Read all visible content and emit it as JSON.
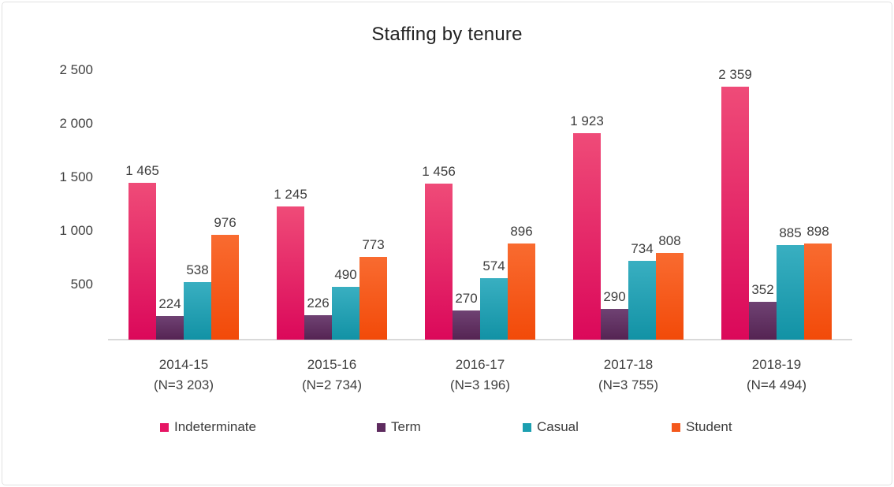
{
  "chart_data": {
    "type": "bar",
    "title": "Staffing by tenure",
    "categories": [
      "2014-15",
      "2015-16",
      "2016-17",
      "2017-18",
      "2018-19"
    ],
    "category_notes": [
      "(N=3 203)",
      "(N=2 734)",
      "(N=3 196)",
      "(N=3 755)",
      "(N=4 494)"
    ],
    "series": [
      {
        "name": "Indeterminate",
        "color": "#E61564",
        "color_top": "#EF4B78",
        "color_bottom": "#DB085A",
        "values": [
          1465,
          1245,
          1456,
          1923,
          2359
        ],
        "value_labels": [
          "1 465",
          "1 245",
          "1 456",
          "1 923",
          "2 359"
        ]
      },
      {
        "name": "Term",
        "color": "#5E2B5F",
        "color_top": "#6F4273",
        "color_bottom": "#552453",
        "values": [
          224,
          226,
          270,
          290,
          352
        ],
        "value_labels": [
          "224",
          "226",
          "270",
          "290",
          "352"
        ]
      },
      {
        "name": "Casual",
        "color": "#1C9FB0",
        "color_top": "#39AFC1",
        "color_bottom": "#1292A5",
        "values": [
          538,
          490,
          574,
          734,
          885
        ],
        "value_labels": [
          "538",
          "490",
          "574",
          "734",
          "885"
        ]
      },
      {
        "name": "Student",
        "color": "#F4581C",
        "color_top": "#F96B30",
        "color_bottom": "#F24A09",
        "values": [
          976,
          773,
          896,
          808,
          898
        ],
        "value_labels": [
          "976",
          "773",
          "896",
          "808",
          "898"
        ]
      }
    ],
    "y_axis": {
      "tick_labels": [
        "2 500",
        "2 000",
        "1 500",
        "1 000",
        "500"
      ],
      "tick_values": [
        2500,
        2000,
        1500,
        1000,
        500
      ],
      "min": 0,
      "max": 2500,
      "gridlines": false
    },
    "legend_position": "bottom",
    "axis_color": "#d9d9d9"
  }
}
